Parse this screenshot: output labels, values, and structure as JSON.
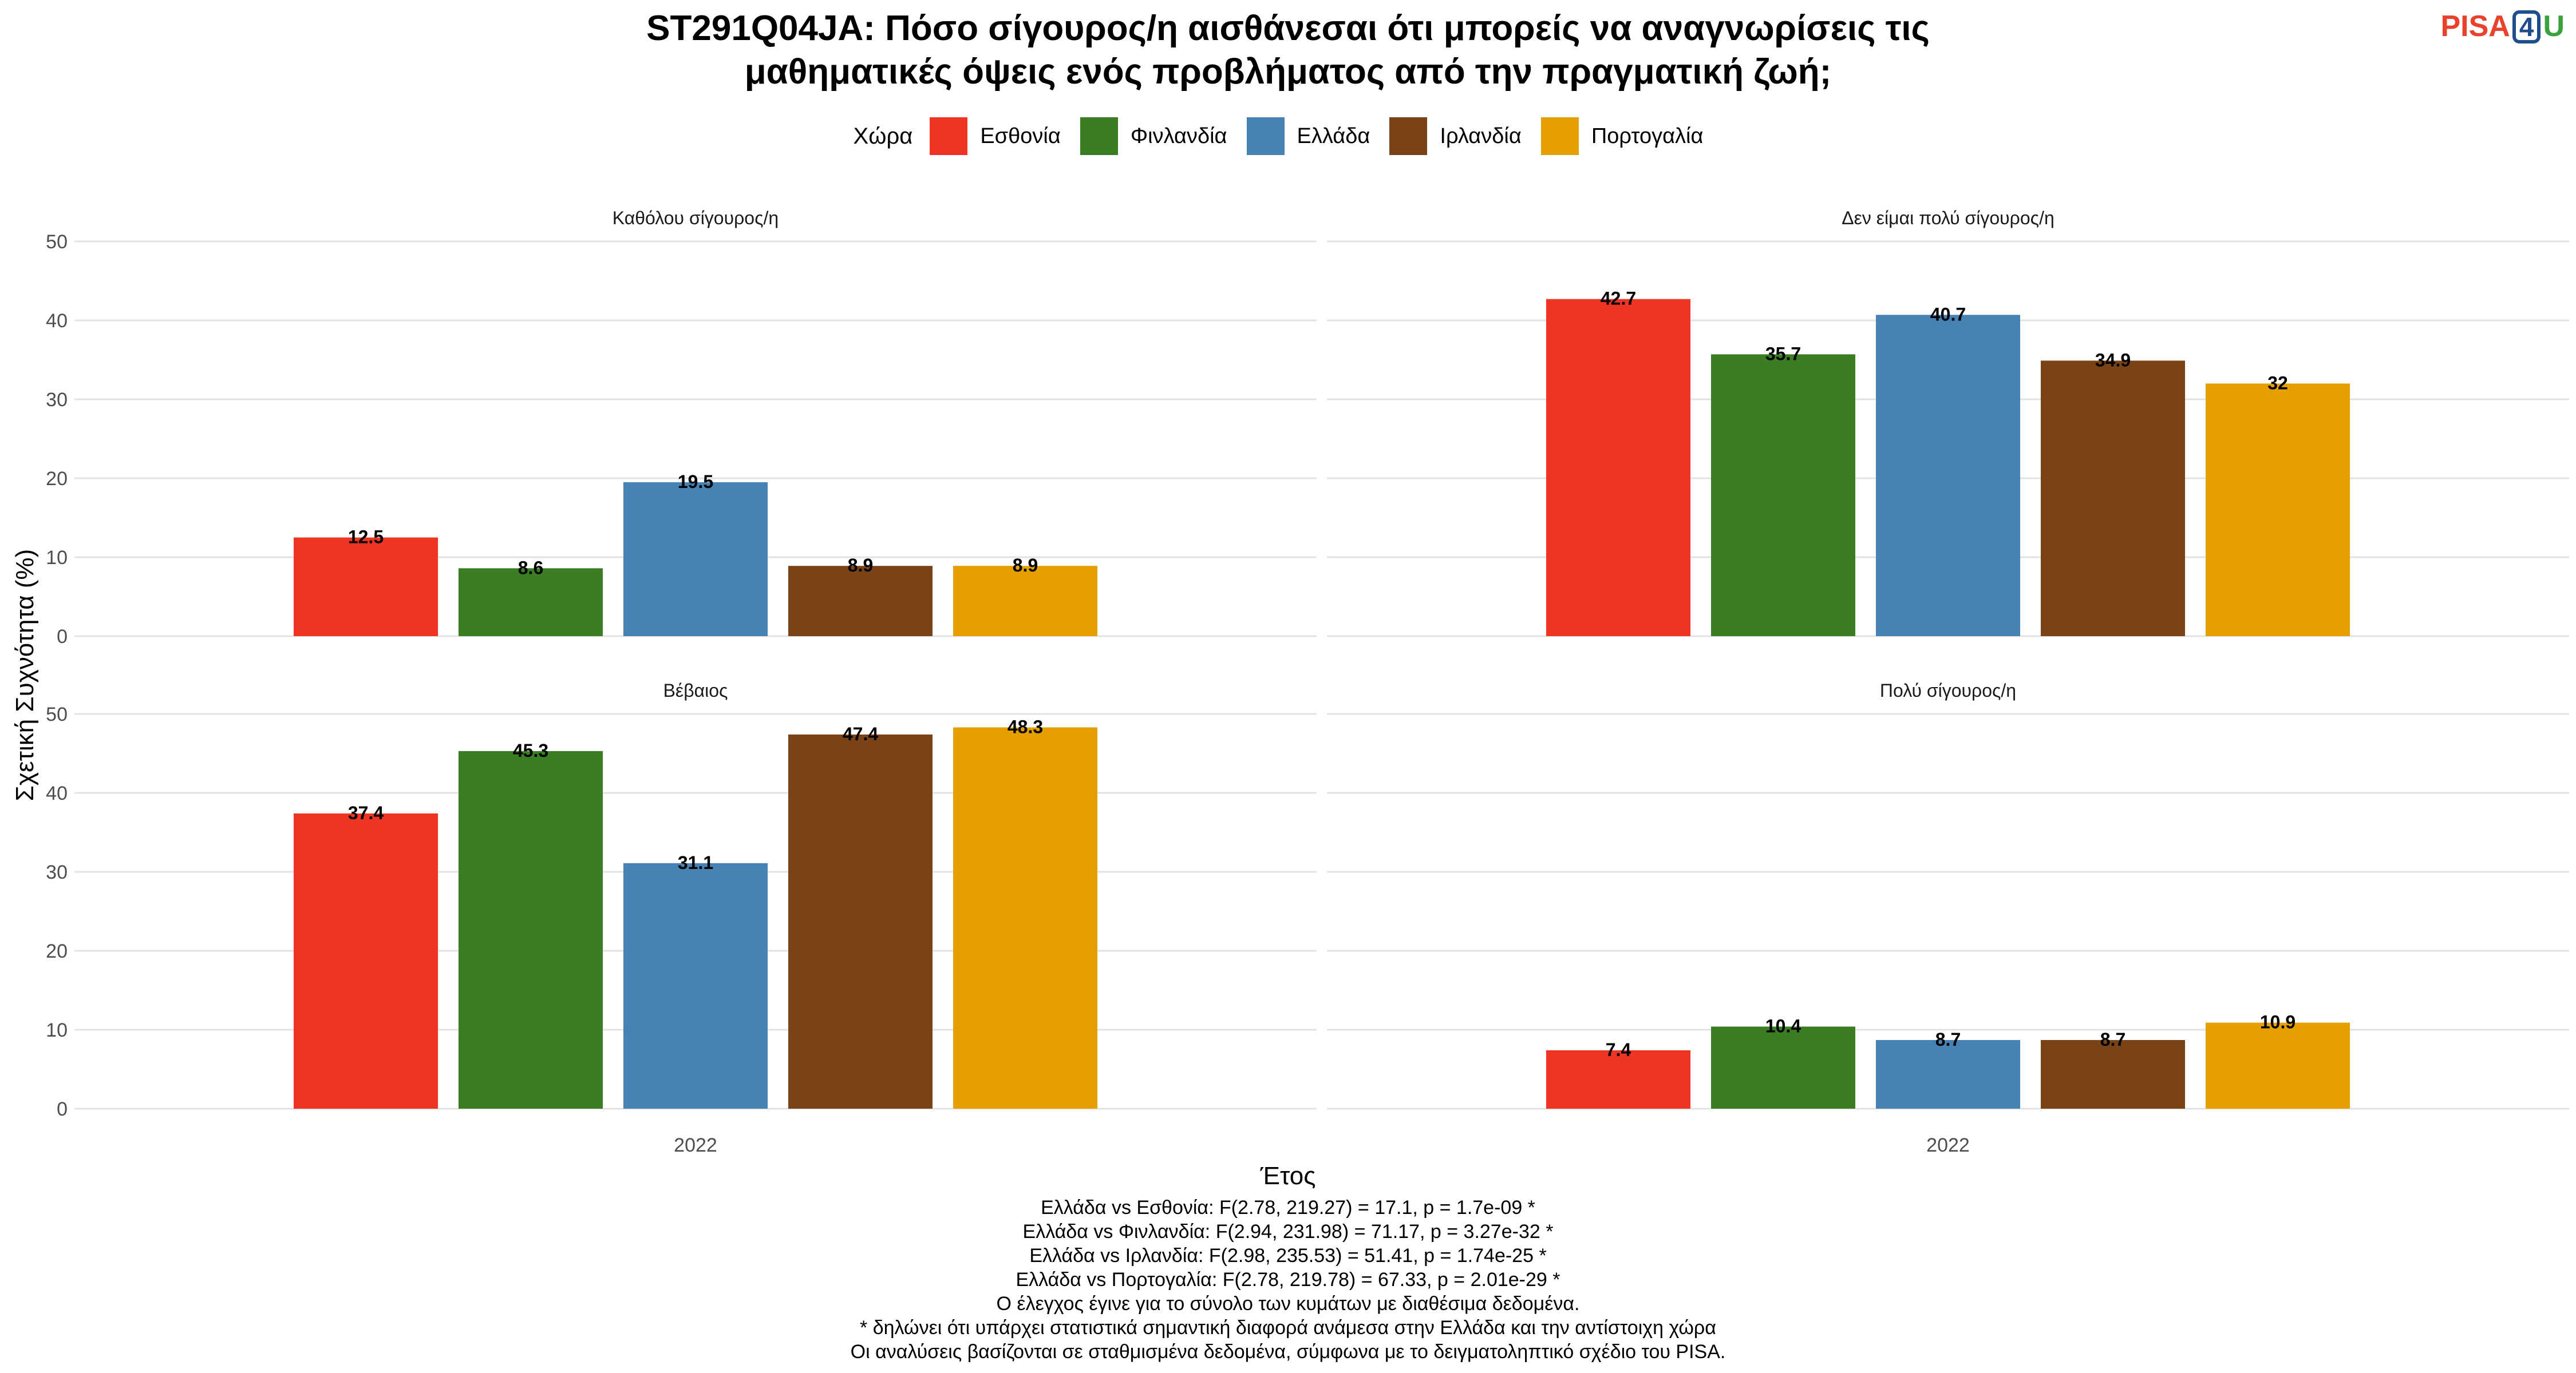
{
  "title_lines": [
    "ST291Q04JA: Πόσο σίγουρος/η αισθάνεσαι ότι μπορείς να αναγνωρίσεις τις",
    "μαθηματικές όψεις ενός προβλήματος από την πραγματική ζωή;"
  ],
  "logo": {
    "part1": "PISA",
    "part2": "4",
    "part3": "U"
  },
  "legend_title": "Χώρα",
  "notes": [
    "Ελλάδα vs Εσθονία: F(2.78, 219.27) = 17.1, p = 1.7e-09 *",
    "Ελλάδα vs Φινλανδία: F(2.94, 231.98) = 71.17, p = 3.27e-32 *",
    "Ελλάδα vs Ιρλανδία: F(2.98, 235.53) = 51.41, p = 1.74e-25 *",
    "Ελλάδα vs Πορτογαλία: F(2.78, 219.78) = 67.33, p = 2.01e-29 *",
    "Ο έλεγχος έγινε για το σύνολο των κυμάτων με διαθέσιμα δεδομένα.",
    "* δηλώνει ότι υπάρχει στατιστικά σημαντική διαφορά ανάμεσα στην Ελλάδα και την αντίστοιχη χώρα",
    "Οι αναλύσεις βασίζονται σε σταθμισμένα δεδομένα, σύμφωνα με το δειγματοληπτικό σχέδιο του PISA."
  ],
  "chart_data": {
    "type": "bar",
    "xlabel": "Έτος",
    "ylabel": "Σχετική Συχνότητα (%)",
    "ylim": [
      0,
      50
    ],
    "yticks": [
      "0",
      "10",
      "20",
      "30",
      "40",
      "50"
    ],
    "grid": true,
    "legend_position": "top",
    "x_category": "2022",
    "series": [
      {
        "name": "Εσθονία",
        "color": "#EE3524"
      },
      {
        "name": "Φινλανδία",
        "color": "#3A7D22"
      },
      {
        "name": "Ελλάδα",
        "color": "#4682B4"
      },
      {
        "name": "Ιρλανδία",
        "color": "#7A4317"
      },
      {
        "name": "Πορτογαλία",
        "color": "#E5A000"
      }
    ],
    "facets": [
      {
        "title": "Καθόλου σίγουρος/η",
        "values": [
          12.5,
          8.6,
          19.5,
          8.9,
          8.9
        ],
        "labels": [
          "12.5",
          "8.6",
          "19.5",
          "8.9",
          "8.9"
        ]
      },
      {
        "title": "Δεν είμαι πολύ σίγουρος/η",
        "values": [
          42.7,
          35.7,
          40.7,
          34.9,
          32
        ],
        "labels": [
          "42.7",
          "35.7",
          "40.7",
          "34.9",
          "32"
        ]
      },
      {
        "title": "Βέβαιος",
        "values": [
          37.4,
          45.3,
          31.1,
          47.4,
          48.3
        ],
        "labels": [
          "37.4",
          "45.3",
          "31.1",
          "47.4",
          "48.3"
        ]
      },
      {
        "title": "Πολύ σίγουρος/η",
        "values": [
          7.4,
          10.4,
          8.7,
          8.7,
          10.9
        ],
        "labels": [
          "7.4",
          "10.4",
          "8.7",
          "8.7",
          "10.9"
        ]
      }
    ]
  }
}
